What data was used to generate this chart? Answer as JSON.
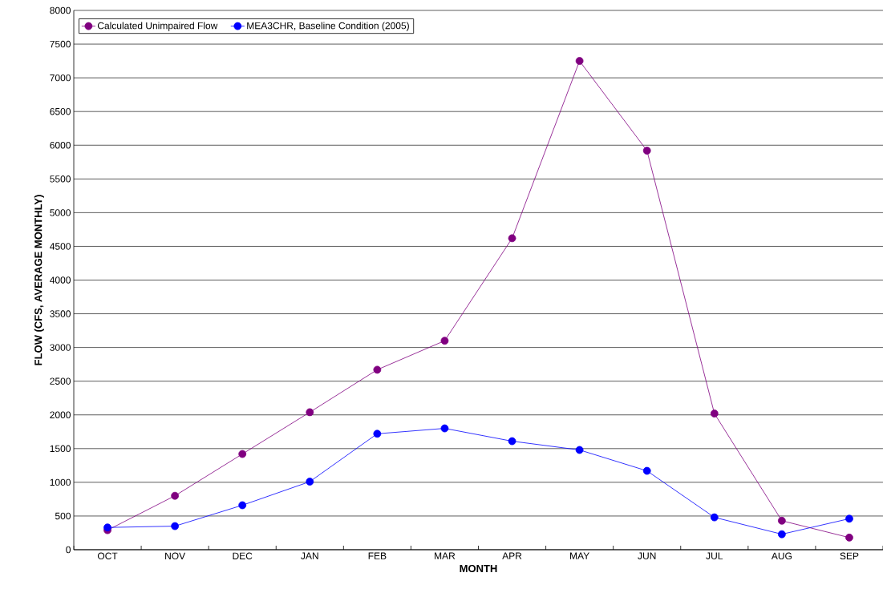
{
  "chart_data": {
    "type": "line",
    "xlabel": "MONTH",
    "ylabel": "FLOW (CFS, AVERAGE MONTHLY)",
    "categories": [
      "OCT",
      "NOV",
      "DEC",
      "JAN",
      "FEB",
      "MAR",
      "APR",
      "MAY",
      "JUN",
      "JUL",
      "AUG",
      "SEP"
    ],
    "series": [
      {
        "name": "Calculated Unimpaired Flow",
        "color": "#800080",
        "values": [
          290,
          800,
          1420,
          2040,
          2670,
          3100,
          4620,
          7250,
          5920,
          2020,
          430,
          180
        ]
      },
      {
        "name": "MEA3CHR, Baseline Condition (2005)",
        "color": "#0000ff",
        "values": [
          330,
          350,
          660,
          1010,
          1720,
          1800,
          1610,
          1480,
          1170,
          480,
          230,
          460
        ]
      }
    ],
    "ylim": [
      0,
      8000
    ],
    "yticks": [
      0,
      500,
      1000,
      1500,
      2000,
      2500,
      3000,
      3500,
      4000,
      4500,
      5000,
      5500,
      6000,
      6500,
      7000,
      7500,
      8000
    ],
    "grid": "y",
    "legend": "top left",
    "marker": "circle",
    "line_style": "solid"
  }
}
